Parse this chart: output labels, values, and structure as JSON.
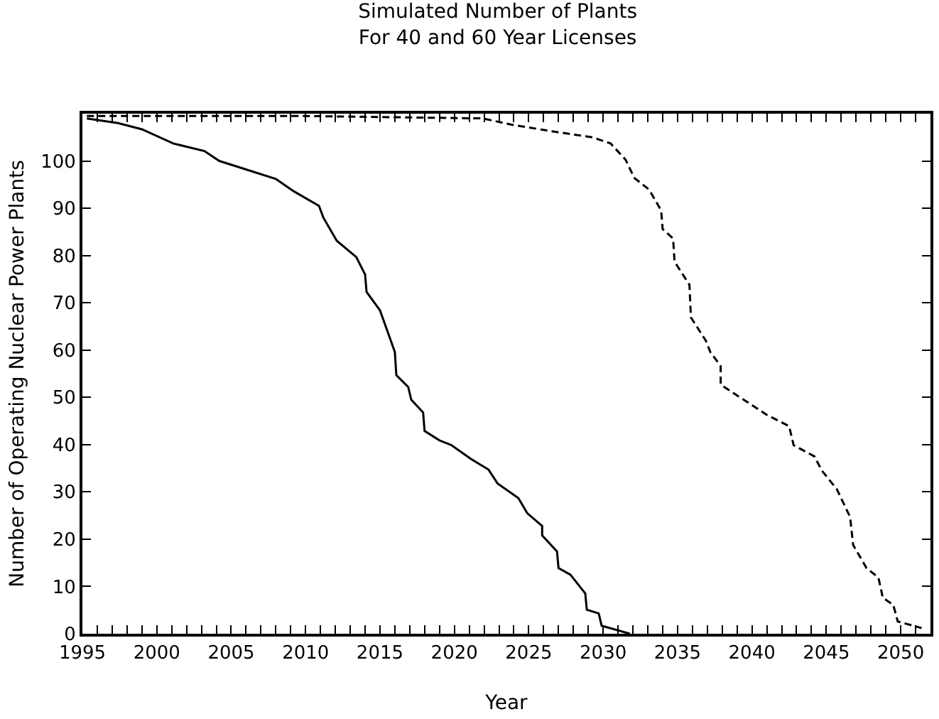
{
  "chart_data": {
    "type": "line",
    "title": "Simulated Number of Plants\nFor 40 and 60 Year Licenses",
    "xlabel": "Year",
    "ylabel": "Number of Operating Nuclear Power Plants",
    "xlim": [
      1995,
      2052
    ],
    "ylim": [
      0,
      110
    ],
    "xticks": [
      1995,
      {
        "value": 1996,
        "label": null
      },
      {
        "value": 1997,
        "label": null
      },
      {
        "value": 1998,
        "label": null
      },
      {
        "value": 1999,
        "label": null
      },
      2000,
      {
        "value": 2001,
        "label": null
      },
      {
        "value": 2002,
        "label": null
      },
      {
        "value": 2003,
        "label": null
      },
      {
        "value": 2004,
        "label": null
      },
      2005,
      {
        "value": 2006,
        "label": null
      },
      {
        "value": 2007,
        "label": null
      },
      {
        "value": 2008,
        "label": null
      },
      {
        "value": 2009,
        "label": null
      },
      2010,
      {
        "value": 2011,
        "label": null
      },
      {
        "value": 2012,
        "label": null
      },
      {
        "value": 2013,
        "label": null
      },
      {
        "value": 2014,
        "label": null
      },
      2015,
      {
        "value": 2016,
        "label": null
      },
      {
        "value": 2017,
        "label": null
      },
      {
        "value": 2018,
        "label": null
      },
      {
        "value": 2019,
        "label": null
      },
      2020,
      {
        "value": 2021,
        "label": null
      },
      {
        "value": 2022,
        "label": null
      },
      {
        "value": 2023,
        "label": null
      },
      {
        "value": 2024,
        "label": null
      },
      2025,
      {
        "value": 2026,
        "label": null
      },
      {
        "value": 2027,
        "label": null
      },
      {
        "value": 2028,
        "label": null
      },
      {
        "value": 2029,
        "label": null
      },
      2030,
      {
        "value": 2031,
        "label": null
      },
      {
        "value": 2032,
        "label": null
      },
      {
        "value": 2033,
        "label": null
      },
      {
        "value": 2034,
        "label": null
      },
      2035,
      {
        "value": 2036,
        "label": null
      },
      {
        "value": 2037,
        "label": null
      },
      {
        "value": 2038,
        "label": null
      },
      {
        "value": 2039,
        "label": null
      },
      2040,
      {
        "value": 2041,
        "label": null
      },
      {
        "value": 2042,
        "label": null
      },
      {
        "value": 2043,
        "label": null
      },
      {
        "value": 2044,
        "label": null
      },
      2045,
      {
        "value": 2046,
        "label": null
      },
      {
        "value": 2047,
        "label": null
      },
      {
        "value": 2048,
        "label": null
      },
      {
        "value": 2049,
        "label": null
      },
      2050,
      {
        "value": 2051,
        "label": null
      }
    ],
    "yticks": [
      0,
      10,
      20,
      30,
      40,
      50,
      60,
      70,
      80,
      90,
      100
    ],
    "marker": "none",
    "series": [
      {
        "color": "#000000",
        "line_style": "solid",
        "x": [
          1995.3,
          1997.4,
          1999.0,
          2001.1,
          2003.2,
          2004.2,
          2005.7,
          2008.0,
          2009.2,
          2010.9,
          2011.2,
          2012.1,
          2013.4,
          2014.0,
          2014.1,
          2015.0,
          2015.5,
          2016.0,
          2016.1,
          2016.9,
          2017.1,
          2017.9,
          2018.0,
          2019.0,
          2019.8,
          2021.1,
          2022.3,
          2022.9,
          2024.3,
          2024.9,
          2025.9,
          2025.9,
          2026.9,
          2027.0,
          2027.8,
          2028.8,
          2028.9,
          2029.7,
          2029.9,
          2031.8
        ],
        "values": [
          109,
          108,
          106.7,
          103.7,
          102.1,
          100,
          98.5,
          96.2,
          93.6,
          90.5,
          88,
          83.1,
          79.7,
          76,
          72.3,
          68.4,
          64,
          59.6,
          54.7,
          52.2,
          49.5,
          46.8,
          42.9,
          40.9,
          39.9,
          37,
          34.7,
          31.8,
          28.7,
          25.5,
          22.8,
          20.8,
          17.4,
          13.9,
          12.5,
          8.5,
          5.1,
          4.3,
          1.7,
          0
        ]
      },
      {
        "color": "#000000",
        "line_style": "dashed",
        "x": [
          1995.3,
          2010,
          2021.9,
          2023.8,
          2026.7,
          2029.3,
          2030.5,
          2031.5,
          2032.1,
          2033.1,
          2033.9,
          2034.0,
          2034.7,
          2034.8,
          2035.8,
          2035.9,
          2036.9,
          2037.2,
          2037.9,
          2037.9,
          2039.1,
          2041.0,
          2042.5,
          2042.8,
          2044.2,
          2044.7,
          2045.7,
          2046.6,
          2046.8,
          2047.7,
          2048.5,
          2048.8,
          2049.5,
          2049.8,
          2051.4
        ],
        "values": [
          109.5,
          109.5,
          109,
          107.7,
          106.2,
          105,
          103.7,
          100.3,
          96.4,
          93.9,
          89.5,
          85.6,
          83.6,
          78.7,
          73.8,
          66.9,
          62,
          59.6,
          56.6,
          52.7,
          50.2,
          46.3,
          43.9,
          39.9,
          37.5,
          34.5,
          30.6,
          24.7,
          18.8,
          13.9,
          11.9,
          7.6,
          6.1,
          2.6,
          1.2
        ]
      }
    ]
  }
}
